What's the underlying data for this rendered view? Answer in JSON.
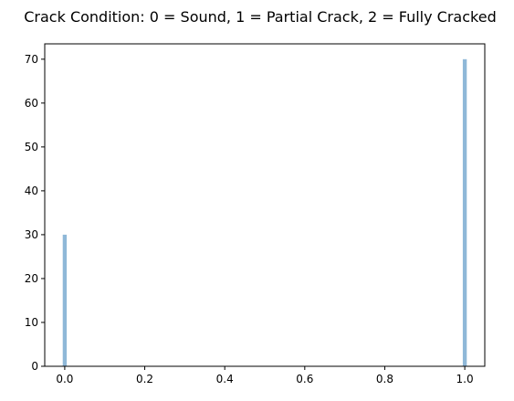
{
  "chart_data": {
    "type": "bar",
    "title": "Crack Condition: 0 = Sound, 1 = Partial Crack, 2 = Fully Cracked",
    "xlabel": "",
    "ylabel": "",
    "x": [
      0.0,
      1.0
    ],
    "values": [
      30,
      70
    ],
    "xlim": [
      -0.05,
      1.05
    ],
    "ylim": [
      0,
      73.5
    ],
    "xticks": [
      0.0,
      0.2,
      0.4,
      0.6,
      0.8,
      1.0
    ],
    "xtick_labels": [
      "0.0",
      "0.2",
      "0.4",
      "0.6",
      "0.8",
      "1.0"
    ],
    "yticks": [
      0,
      10,
      20,
      30,
      40,
      50,
      60,
      70
    ],
    "ytick_labels": [
      "0",
      "10",
      "20",
      "30",
      "40",
      "50",
      "60",
      "70"
    ],
    "bin_width": 0.01,
    "grid": false,
    "bar_color": "#8fb8d8"
  }
}
